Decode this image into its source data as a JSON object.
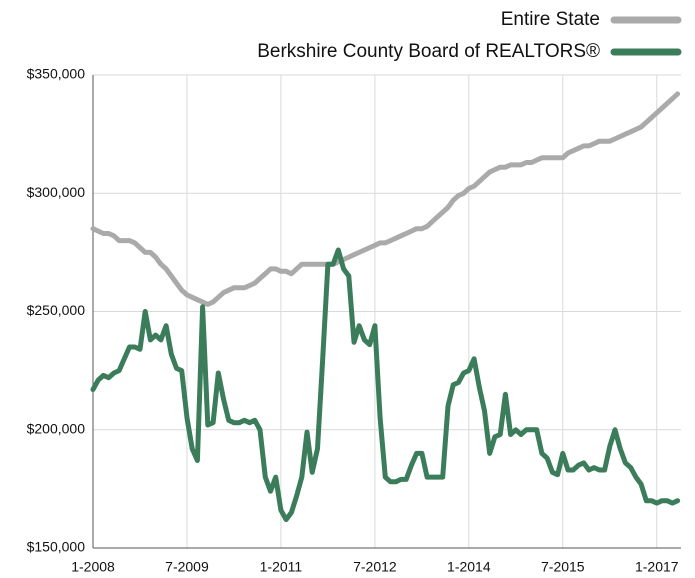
{
  "chart_data": {
    "type": "line",
    "categories": [
      "1-2008",
      null,
      null,
      null,
      null,
      null,
      null,
      null,
      null,
      null,
      null,
      null,
      null,
      null,
      null,
      null,
      null,
      null,
      "7-2009",
      null,
      null,
      null,
      null,
      null,
      null,
      null,
      null,
      null,
      null,
      null,
      null,
      null,
      null,
      null,
      null,
      null,
      "1-2011",
      null,
      null,
      null,
      null,
      null,
      null,
      null,
      null,
      null,
      null,
      null,
      null,
      null,
      null,
      null,
      null,
      null,
      "7-2012",
      null,
      null,
      null,
      null,
      null,
      null,
      null,
      null,
      null,
      null,
      null,
      null,
      null,
      null,
      null,
      null,
      null,
      "1-2014",
      null,
      null,
      null,
      null,
      null,
      null,
      null,
      null,
      null,
      null,
      null,
      null,
      null,
      null,
      null,
      null,
      null,
      "7-2015",
      null,
      null,
      null,
      null,
      null,
      null,
      null,
      null,
      null,
      null,
      null,
      null,
      null,
      null,
      null,
      null,
      null,
      "1-2017",
      null,
      null,
      null,
      null
    ],
    "series": [
      {
        "name": "Entire State",
        "color": "#aaaaaa",
        "values": [
          285000,
          284000,
          283000,
          283000,
          282000,
          280000,
          280000,
          280000,
          279000,
          277000,
          275000,
          275000,
          273000,
          270000,
          268000,
          265000,
          262000,
          259000,
          257000,
          256000,
          255000,
          254000,
          253000,
          254000,
          256000,
          258000,
          259000,
          260000,
          260000,
          260000,
          261000,
          262000,
          264000,
          266000,
          268000,
          268000,
          267000,
          267000,
          266000,
          268000,
          270000,
          270000,
          270000,
          270000,
          270000,
          270000,
          270000,
          271000,
          272000,
          273000,
          274000,
          275000,
          276000,
          277000,
          278000,
          279000,
          279000,
          280000,
          281000,
          282000,
          283000,
          284000,
          285000,
          285000,
          286000,
          288000,
          290000,
          292000,
          294000,
          297000,
          299000,
          300000,
          302000,
          303000,
          305000,
          307000,
          309000,
          310000,
          311000,
          311000,
          312000,
          312000,
          312000,
          313000,
          313000,
          314000,
          315000,
          315000,
          315000,
          315000,
          315000,
          317000,
          318000,
          319000,
          320000,
          320000,
          321000,
          322000,
          322000,
          322000,
          323000,
          324000,
          325000,
          326000,
          327000,
          328000,
          330000,
          332000,
          334000,
          336000,
          338000,
          340000,
          342000
        ]
      },
      {
        "name": "Berkshire County Board of REALTORS®",
        "color": "#3b7d5b",
        "values": [
          217000,
          221000,
          223000,
          222000,
          224000,
          225000,
          230000,
          235000,
          235000,
          234000,
          250000,
          238000,
          240000,
          238000,
          244000,
          232000,
          226000,
          225000,
          205000,
          192000,
          187000,
          252000,
          202000,
          203000,
          224000,
          213000,
          204000,
          203000,
          203000,
          204000,
          203000,
          204000,
          200000,
          180000,
          174000,
          180000,
          166000,
          162000,
          165000,
          172000,
          180000,
          199000,
          182000,
          192000,
          230000,
          270000,
          270000,
          276000,
          268000,
          265000,
          237000,
          244000,
          238000,
          236000,
          244000,
          205000,
          180000,
          178000,
          178000,
          179000,
          179000,
          185000,
          190000,
          190000,
          180000,
          180000,
          180000,
          180000,
          210000,
          219000,
          220000,
          224000,
          225000,
          230000,
          218000,
          208000,
          190000,
          197000,
          198000,
          215000,
          198000,
          200000,
          198000,
          200000,
          200000,
          200000,
          190000,
          188000,
          182000,
          181000,
          190000,
          183000,
          183000,
          185000,
          186000,
          183000,
          184000,
          183000,
          183000,
          193000,
          200000,
          192000,
          186000,
          184000,
          180000,
          177000,
          170000,
          170000,
          169000,
          170000,
          170000,
          169000,
          170000
        ]
      }
    ],
    "ylim": [
      150000,
      350000
    ],
    "yticks": [
      {
        "value": 150000,
        "label": "$150,000"
      },
      {
        "value": 200000,
        "label": "$200,000"
      },
      {
        "value": 250000,
        "label": "$250,000"
      },
      {
        "value": 300000,
        "label": "$300,000"
      },
      {
        "value": 350000,
        "label": "$350,000"
      }
    ],
    "grid": true,
    "legend": "top-right"
  }
}
